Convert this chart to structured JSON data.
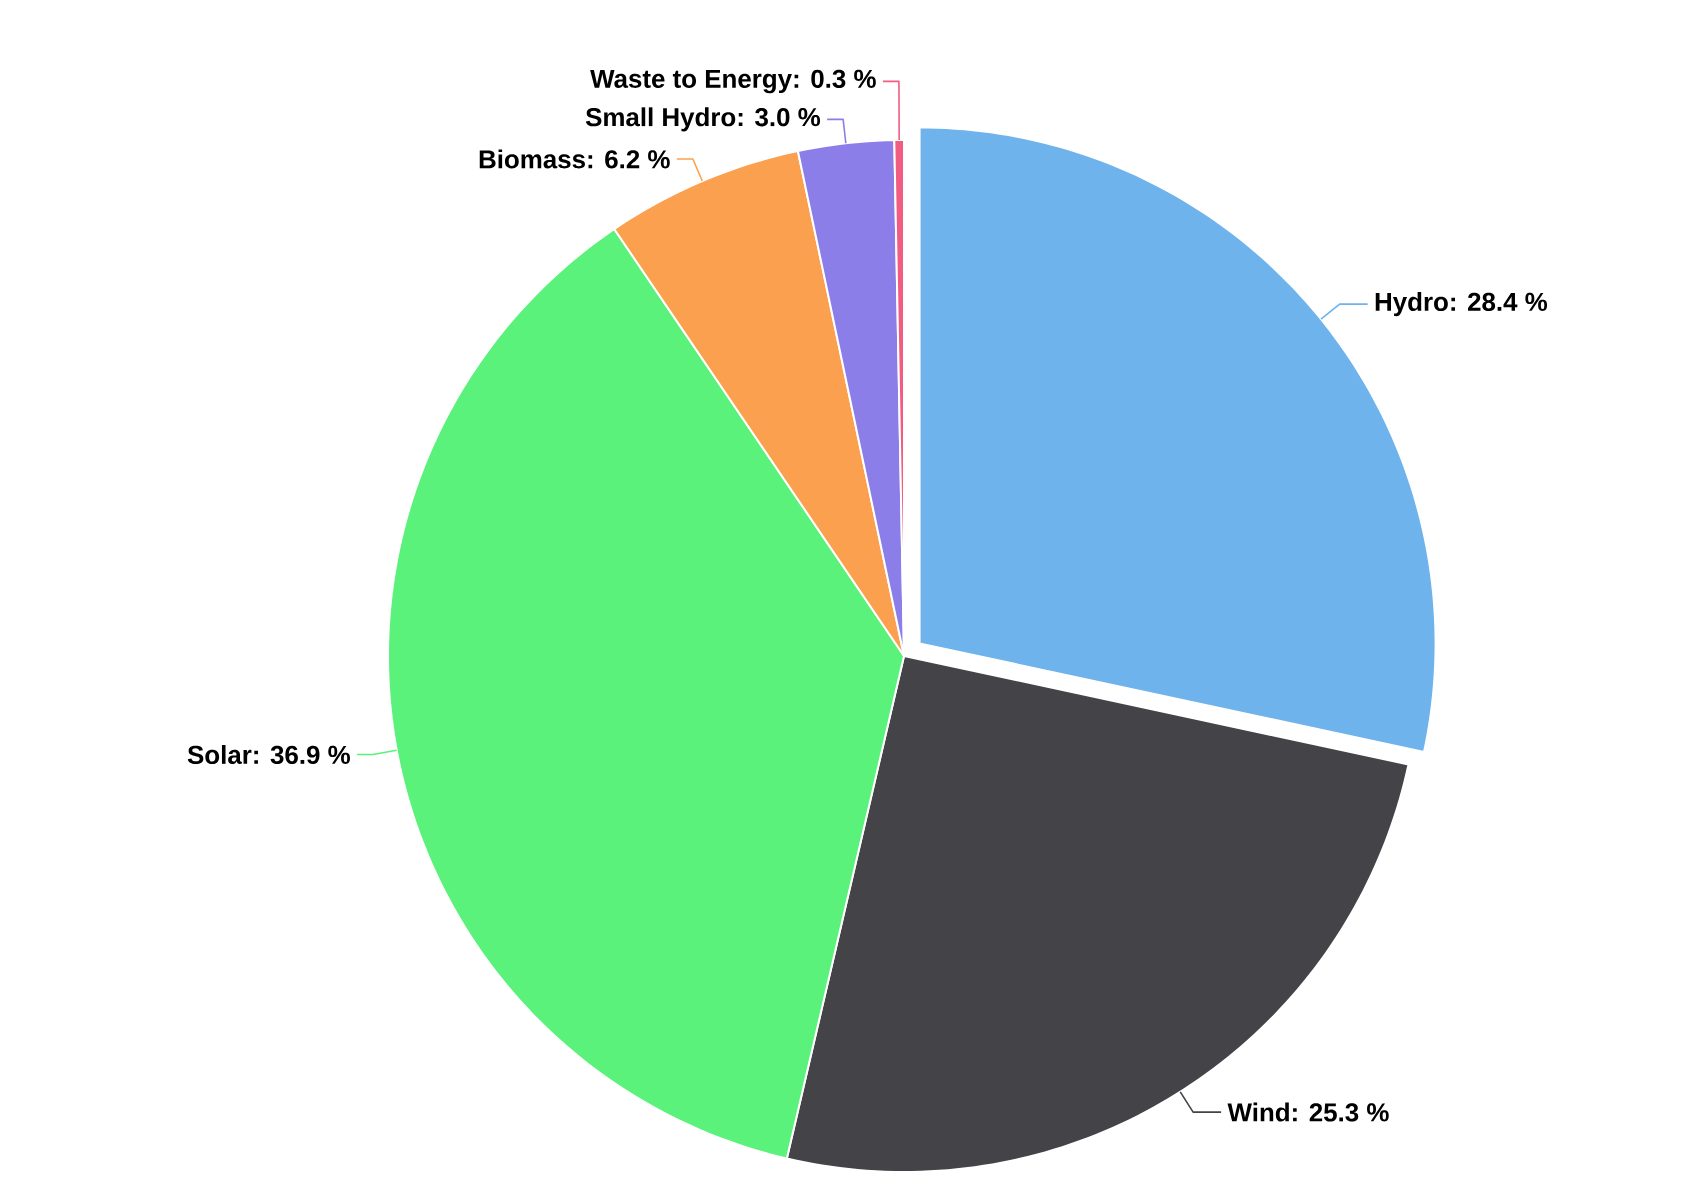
{
  "chart_data": {
    "type": "pie",
    "categories": [
      "Hydro",
      "Wind",
      "Solar",
      "Biomass",
      "Small Hydro",
      "Waste to Energy"
    ],
    "values": [
      28.4,
      25.3,
      36.9,
      6.2,
      3.0,
      0.3
    ],
    "colors": [
      "#6fb3ed",
      "#434348",
      "#5af27a",
      "#fba04f",
      "#8c7ee8",
      "#f15c80"
    ],
    "value_labels": [
      ": 28.4 %",
      ": 25.3 %",
      ": 36.9 %",
      ": 6.2 %",
      ": 3.0 %",
      ": 0.3 %"
    ]
  }
}
